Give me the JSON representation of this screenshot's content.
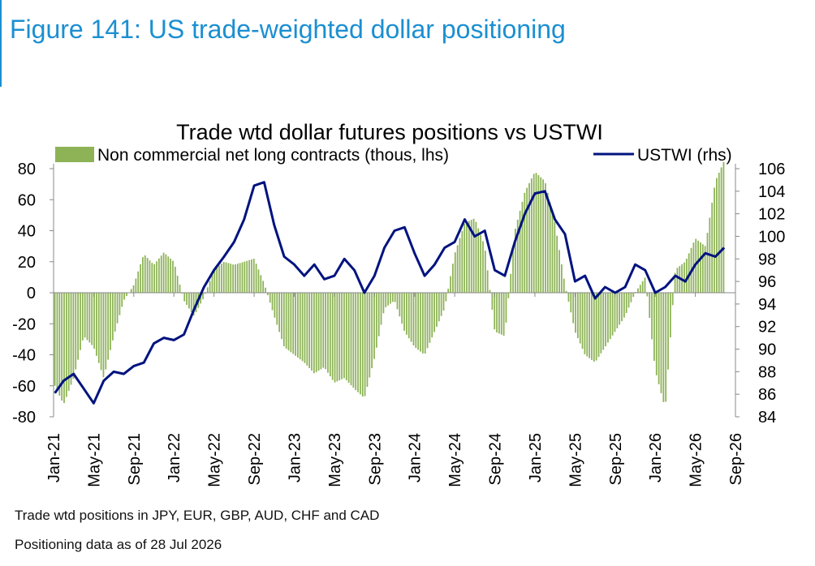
{
  "figure": {
    "title": "Figure 141: US trade-weighted dollar positioning"
  },
  "notes": {
    "line1": "Trade wtd positions in JPY, EUR, GBP, AUD, CHF and CAD",
    "line2": "Positioning data as of 28 Jul 2026"
  },
  "colors": {
    "bars": "#8db356",
    "line": "#00137f",
    "title_accent": "#1b8fd1"
  },
  "chart_data": {
    "type": "bar",
    "title": "Trade wtd dollar futures positions  vs USTWI",
    "legend_placement": "top",
    "x_tick_labels": [
      "Jan-21",
      "May-21",
      "Sep-21",
      "Jan-22",
      "May-22",
      "Sep-22",
      "Jan-23",
      "May-23",
      "Sep-23",
      "Jan-24",
      "May-24",
      "Sep-24",
      "Jan-25",
      "May-25",
      "Sep-25",
      "Jan-26",
      "May-26",
      "Sep-26"
    ],
    "x_range": [
      "2021-01",
      "2026-09"
    ],
    "left_axis": {
      "ylim": [
        -80,
        80
      ],
      "ticks": [
        "80",
        "60",
        "40",
        "20",
        "0",
        "-20",
        "-40",
        "-60",
        "-80"
      ]
    },
    "right_axis": {
      "ylim": [
        84,
        106
      ],
      "ticks": [
        "106",
        "104",
        "102",
        "100",
        "98",
        "96",
        "94",
        "92",
        "90",
        "88",
        "86",
        "84"
      ]
    },
    "series": [
      {
        "name": "Non commercial net long contracts (thous, lhs)",
        "type": "bar",
        "axis": "left",
        "points": [
          [
            "2021-01-05",
            -60
          ],
          [
            "2021-02-01",
            -72
          ],
          [
            "2021-03-01",
            -55
          ],
          [
            "2021-04-01",
            -28
          ],
          [
            "2021-05-01",
            -35
          ],
          [
            "2021-06-01",
            -55
          ],
          [
            "2021-07-01",
            -28
          ],
          [
            "2021-08-01",
            -5
          ],
          [
            "2021-09-01",
            5
          ],
          [
            "2021-10-01",
            25
          ],
          [
            "2021-11-01",
            18
          ],
          [
            "2021-12-01",
            26
          ],
          [
            "2022-01-01",
            20
          ],
          [
            "2022-02-01",
            -5
          ],
          [
            "2022-03-01",
            -15
          ],
          [
            "2022-04-01",
            -3
          ],
          [
            "2022-05-01",
            15
          ],
          [
            "2022-06-01",
            20
          ],
          [
            "2022-07-01",
            18
          ],
          [
            "2022-08-01",
            20
          ],
          [
            "2022-09-01",
            22
          ],
          [
            "2022-10-01",
            6
          ],
          [
            "2022-11-01",
            -15
          ],
          [
            "2022-12-01",
            -35
          ],
          [
            "2023-01-01",
            -40
          ],
          [
            "2023-02-01",
            -45
          ],
          [
            "2023-03-01",
            -52
          ],
          [
            "2023-04-01",
            -48
          ],
          [
            "2023-05-01",
            -58
          ],
          [
            "2023-06-01",
            -55
          ],
          [
            "2023-07-01",
            -62
          ],
          [
            "2023-08-01",
            -68
          ],
          [
            "2023-09-01",
            -42
          ],
          [
            "2023-10-01",
            -10
          ],
          [
            "2023-11-01",
            -5
          ],
          [
            "2023-12-01",
            -25
          ],
          [
            "2024-01-01",
            -35
          ],
          [
            "2024-02-01",
            -40
          ],
          [
            "2024-03-01",
            -25
          ],
          [
            "2024-04-01",
            -10
          ],
          [
            "2024-05-01",
            25
          ],
          [
            "2024-06-01",
            45
          ],
          [
            "2024-07-01",
            48
          ],
          [
            "2024-08-01",
            30
          ],
          [
            "2024-09-01",
            -25
          ],
          [
            "2024-10-01",
            -28
          ],
          [
            "2024-11-01",
            40
          ],
          [
            "2024-12-01",
            65
          ],
          [
            "2025-01-01",
            78
          ],
          [
            "2025-02-01",
            72
          ],
          [
            "2025-03-01",
            45
          ],
          [
            "2025-04-01",
            5
          ],
          [
            "2025-05-01",
            -25
          ],
          [
            "2025-06-01",
            -40
          ],
          [
            "2025-07-01",
            -45
          ],
          [
            "2025-08-01",
            -35
          ],
          [
            "2025-09-01",
            -25
          ],
          [
            "2025-10-01",
            -15
          ],
          [
            "2025-11-01",
            0
          ],
          [
            "2025-12-01",
            10
          ],
          [
            "2026-01-01",
            -50
          ],
          [
            "2026-02-01",
            -75
          ],
          [
            "2026-03-01",
            15
          ],
          [
            "2026-04-01",
            20
          ],
          [
            "2026-05-01",
            35
          ],
          [
            "2026-06-01",
            30
          ],
          [
            "2026-07-01",
            72
          ],
          [
            "2026-07-28",
            85
          ]
        ]
      },
      {
        "name": "USTWI (rhs)",
        "type": "line",
        "axis": "right",
        "points": [
          [
            "2021-01-05",
            86.1
          ],
          [
            "2021-02-01",
            87.2
          ],
          [
            "2021-03-01",
            87.8
          ],
          [
            "2021-04-01",
            86.5
          ],
          [
            "2021-05-01",
            85.2
          ],
          [
            "2021-06-01",
            87.2
          ],
          [
            "2021-07-01",
            88.0
          ],
          [
            "2021-08-01",
            87.8
          ],
          [
            "2021-09-01",
            88.5
          ],
          [
            "2021-10-01",
            88.8
          ],
          [
            "2021-11-01",
            90.5
          ],
          [
            "2021-12-01",
            91.0
          ],
          [
            "2022-01-01",
            90.8
          ],
          [
            "2022-02-01",
            91.3
          ],
          [
            "2022-03-01",
            93.5
          ],
          [
            "2022-04-01",
            95.5
          ],
          [
            "2022-05-01",
            97.0
          ],
          [
            "2022-06-01",
            98.2
          ],
          [
            "2022-07-01",
            99.5
          ],
          [
            "2022-08-01",
            101.5
          ],
          [
            "2022-09-01",
            104.5
          ],
          [
            "2022-10-01",
            104.8
          ],
          [
            "2022-11-01",
            101.0
          ],
          [
            "2022-12-01",
            98.2
          ],
          [
            "2023-01-01",
            97.5
          ],
          [
            "2023-02-01",
            96.5
          ],
          [
            "2023-03-01",
            97.5
          ],
          [
            "2023-04-01",
            96.2
          ],
          [
            "2023-05-01",
            96.5
          ],
          [
            "2023-06-01",
            98.0
          ],
          [
            "2023-07-01",
            97.0
          ],
          [
            "2023-08-01",
            95.0
          ],
          [
            "2023-09-01",
            96.5
          ],
          [
            "2023-10-01",
            99.0
          ],
          [
            "2023-11-01",
            100.5
          ],
          [
            "2023-12-01",
            100.8
          ],
          [
            "2024-01-01",
            98.5
          ],
          [
            "2024-02-01",
            96.5
          ],
          [
            "2024-03-01",
            97.5
          ],
          [
            "2024-04-01",
            99.0
          ],
          [
            "2024-05-01",
            99.5
          ],
          [
            "2024-06-01",
            101.5
          ],
          [
            "2024-07-01",
            100.0
          ],
          [
            "2024-08-01",
            100.5
          ],
          [
            "2024-09-01",
            97.0
          ],
          [
            "2024-10-01",
            96.5
          ],
          [
            "2024-11-01",
            99.5
          ],
          [
            "2024-12-01",
            102.0
          ],
          [
            "2025-01-01",
            103.8
          ],
          [
            "2025-02-01",
            104.0
          ],
          [
            "2025-03-01",
            101.5
          ],
          [
            "2025-04-01",
            100.2
          ],
          [
            "2025-05-01",
            96.0
          ],
          [
            "2025-06-01",
            96.5
          ],
          [
            "2025-07-01",
            94.5
          ],
          [
            "2025-08-01",
            95.5
          ],
          [
            "2025-09-01",
            95.0
          ],
          [
            "2025-10-01",
            95.5
          ],
          [
            "2025-11-01",
            97.5
          ],
          [
            "2025-12-01",
            97.0
          ],
          [
            "2026-01-01",
            95.0
          ],
          [
            "2026-02-01",
            95.5
          ],
          [
            "2026-03-01",
            96.5
          ],
          [
            "2026-04-01",
            96.0
          ],
          [
            "2026-05-01",
            97.5
          ],
          [
            "2026-06-01",
            98.5
          ],
          [
            "2026-07-01",
            98.2
          ],
          [
            "2026-07-28",
            99.0
          ]
        ]
      }
    ]
  }
}
